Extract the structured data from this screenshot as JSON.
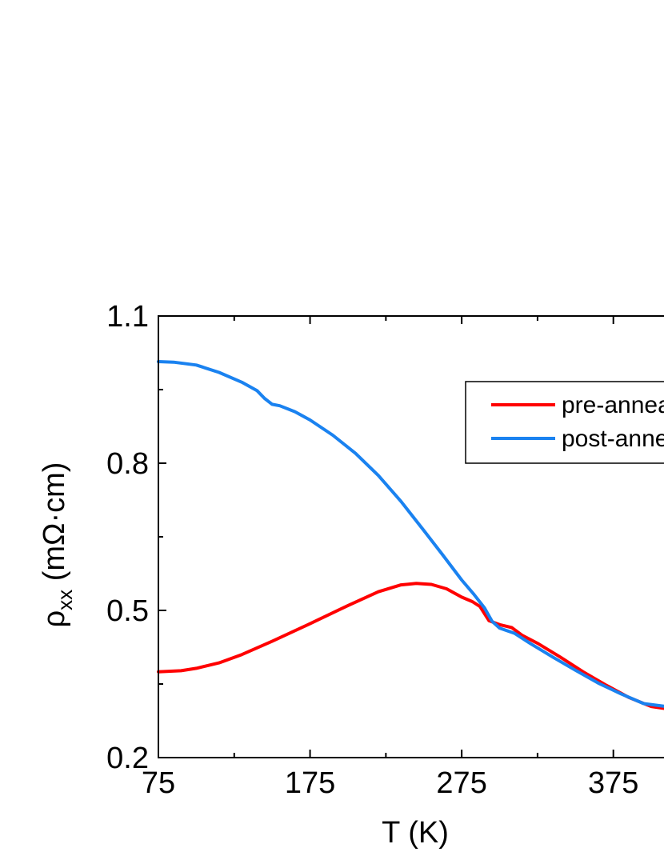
{
  "chart_data": {
    "type": "line",
    "title": "",
    "xlabel": "T (K)",
    "ylabel": {
      "base": "ρ",
      "sub": "xx",
      "unit": " (mΩ·cm)"
    },
    "xlim": [
      75,
      420
    ],
    "ylim": [
      0.2,
      1.1
    ],
    "xticks": [
      75,
      175,
      275,
      375
    ],
    "xtick_labels": [
      "75",
      "175",
      "275",
      "375"
    ],
    "yticks": [
      0.2,
      0.5,
      0.8,
      1.1
    ],
    "ytick_labels": [
      "0.2",
      "0.5",
      "0.8",
      "1.1"
    ],
    "legend_position": "top-right",
    "series": [
      {
        "name": "pre-annealed",
        "color": "#ff0000",
        "x": [
          75,
          90,
          100,
          115,
          130,
          150,
          175,
          200,
          220,
          235,
          245,
          255,
          265,
          275,
          282,
          287,
          293,
          300,
          308,
          315,
          325,
          340,
          355,
          370,
          385,
          400,
          420
        ],
        "y": [
          0.375,
          0.377,
          0.382,
          0.393,
          0.41,
          0.437,
          0.473,
          0.51,
          0.538,
          0.552,
          0.555,
          0.553,
          0.544,
          0.527,
          0.518,
          0.508,
          0.479,
          0.471,
          0.465,
          0.449,
          0.433,
          0.405,
          0.375,
          0.348,
          0.323,
          0.304,
          0.295
        ]
      },
      {
        "name": "post-annealed",
        "color": "#1a82f0",
        "x": [
          75,
          85,
          100,
          115,
          130,
          140,
          145,
          150,
          155,
          165,
          175,
          190,
          205,
          220,
          235,
          250,
          262,
          275,
          283,
          290,
          295,
          300,
          310,
          320,
          335,
          350,
          365,
          380,
          395,
          420
        ],
        "y": [
          1.007,
          1.006,
          1.0,
          0.985,
          0.965,
          0.948,
          0.932,
          0.92,
          0.917,
          0.905,
          0.888,
          0.857,
          0.82,
          0.775,
          0.722,
          0.663,
          0.615,
          0.562,
          0.533,
          0.505,
          0.478,
          0.464,
          0.453,
          0.433,
          0.405,
          0.378,
          0.352,
          0.33,
          0.31,
          0.3
        ]
      }
    ]
  }
}
